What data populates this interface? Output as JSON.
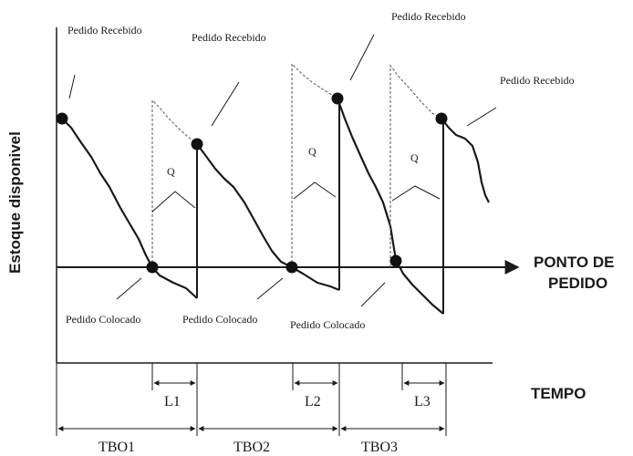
{
  "labels": {
    "received": [
      "Pedido Recebido",
      "Pedido Recebido",
      "Pedido Recebido",
      "Pedido Recebido"
    ],
    "placed": [
      "Pedido Colocado",
      "Pedido Colocado",
      "Pedido Colocado"
    ],
    "q": [
      "Q",
      "Q",
      "Q"
    ],
    "lead_times": [
      "L1",
      "L2",
      "L3"
    ],
    "cycles": [
      "TBO1",
      "TBO2",
      "TBO3"
    ],
    "y_axis": "Estoque disponivel",
    "reorder_line": [
      "PONTO DE",
      "PEDIDO"
    ],
    "x_axis": "TEMPO"
  },
  "colors": {
    "stroke": "#1a1a1a",
    "dashed": "#555555",
    "dot": "#111111"
  }
}
